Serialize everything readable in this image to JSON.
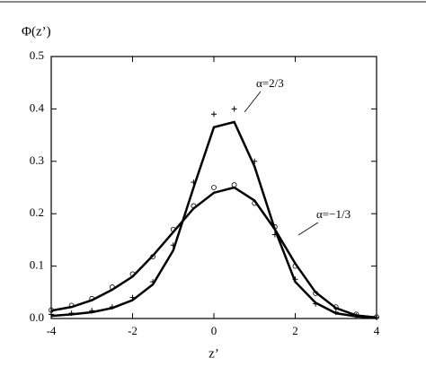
{
  "chart_data": {
    "type": "line",
    "y_label": "Φ(z’)",
    "x_label": "z’",
    "annotations": [
      "α=2/3",
      "α=−1/3"
    ],
    "x": [
      -4,
      -3.5,
      -3,
      -2.5,
      -2,
      -1.5,
      -1,
      -0.5,
      0,
      0.5,
      1,
      1.5,
      2,
      2.5,
      3,
      3.5,
      4
    ],
    "series": [
      {
        "style": "line",
        "color": "#000000",
        "values": [
          0.005,
          0.008,
          0.012,
          0.02,
          0.035,
          0.065,
          0.13,
          0.25,
          0.365,
          0.375,
          0.29,
          0.17,
          0.07,
          0.03,
          0.01,
          0.004,
          0.001
        ]
      },
      {
        "style": "line",
        "color": "#000000",
        "values": [
          0.015,
          0.022,
          0.035,
          0.055,
          0.08,
          0.12,
          0.165,
          0.21,
          0.24,
          0.25,
          0.225,
          0.17,
          0.105,
          0.05,
          0.02,
          0.006,
          0.002
        ]
      },
      {
        "style": "plus",
        "color": "#000000",
        "values": [
          0.008,
          0.01,
          0.015,
          0.022,
          0.04,
          0.07,
          0.14,
          0.26,
          0.39,
          0.4,
          0.3,
          0.16,
          0.075,
          0.028,
          0.012,
          0.005,
          0.002
        ]
      },
      {
        "style": "circle",
        "color": "#000000",
        "values": [
          0.016,
          0.025,
          0.038,
          0.06,
          0.085,
          0.118,
          0.17,
          0.215,
          0.25,
          0.255,
          0.22,
          0.175,
          0.1,
          0.048,
          0.022,
          0.008,
          0.003
        ]
      }
    ],
    "xlim": [
      -4,
      4
    ],
    "xticks": [
      -4,
      -2,
      0,
      2,
      4
    ],
    "ylim": [
      0,
      0.5
    ],
    "yticks": [
      {
        "value": 0,
        "label": "0.0"
      },
      0.1,
      0.2,
      0.3,
      0.4,
      0.5
    ]
  }
}
